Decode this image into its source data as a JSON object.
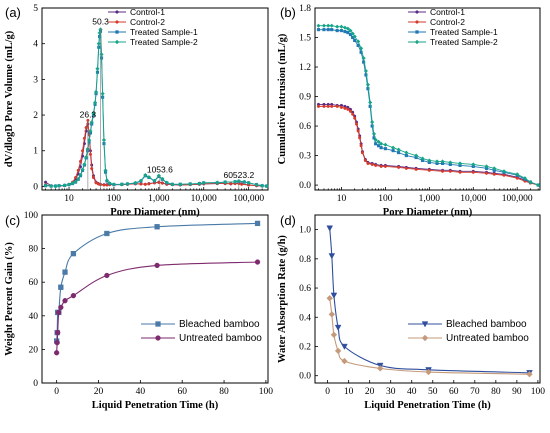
{
  "chart_data": [
    {
      "panel": "(a)",
      "type": "line",
      "xlabel": "Pore Diameter (nm)",
      "ylabel": "dV/dlogD Pore Volume (mL/g)",
      "xscale": "log",
      "xlim": [
        2.5,
        270000
      ],
      "ylim": [
        -0.1,
        5
      ],
      "xticks": [
        {
          "v": 10,
          "t": "10"
        },
        {
          "v": 100,
          "t": "100"
        },
        {
          "v": 1000,
          "t": "1,000"
        },
        {
          "v": 10000,
          "t": "10,000"
        },
        {
          "v": 100000,
          "t": "100,000"
        }
      ],
      "yticks": [
        0,
        1,
        2,
        3,
        4,
        5
      ],
      "legend_position": "top-center",
      "annotations": [
        {
          "text": "26.3",
          "x": 26.3,
          "y": 1.85
        },
        {
          "text": "50.3",
          "x": 50.3,
          "y": 4.45
        },
        {
          "text": "1053.6",
          "x": 1053.6,
          "y": 0.3
        },
        {
          "text": "60523.2",
          "x": 60523.2,
          "y": 0.15
        }
      ],
      "series": [
        {
          "name": "Control-1",
          "color": "#5b2a83",
          "marker": "dot",
          "x": [
            3,
            4,
            5,
            6,
            8,
            10,
            12,
            14,
            16,
            18,
            20,
            22,
            24,
            26.3,
            28,
            30,
            32,
            35,
            40,
            45,
            50,
            60,
            70,
            80,
            100,
            150,
            200,
            300,
            400,
            500,
            600,
            800,
            1000,
            1200,
            1500,
            2000,
            3000,
            5000,
            8000,
            10000,
            20000,
            30000,
            40000,
            50000,
            60523,
            70000,
            100000,
            150000,
            200000,
            250000
          ],
          "y": [
            0.12,
            0.02,
            0.01,
            0.01,
            0.02,
            0.05,
            0.1,
            0.2,
            0.35,
            0.55,
            0.85,
            1.2,
            1.55,
            1.75,
            1.5,
            1.0,
            0.6,
            0.3,
            0.12,
            0.08,
            0.06,
            0.05,
            0.05,
            0.05,
            0.05,
            0.05,
            0.06,
            0.08,
            0.07,
            0.06,
            0.08,
            0.1,
            0.12,
            0.1,
            0.06,
            0.05,
            0.04,
            0.05,
            0.06,
            0.07,
            0.08,
            0.08,
            0.07,
            0.08,
            0.09,
            0.07,
            0.04,
            0.02,
            0.01,
            0.01
          ]
        },
        {
          "name": "Control-2",
          "color": "#d63a2a",
          "marker": "dot",
          "x": [
            3,
            4,
            5,
            6,
            8,
            10,
            12,
            14,
            16,
            18,
            20,
            22,
            24,
            26.3,
            28,
            30,
            32,
            35,
            40,
            45,
            50,
            60,
            70,
            80,
            100,
            150,
            200,
            300,
            400,
            500,
            600,
            800,
            1000,
            1200,
            1500,
            2000,
            3000,
            5000,
            8000,
            10000,
            20000,
            30000,
            40000,
            50000,
            60523,
            70000,
            100000,
            150000,
            200000,
            250000
          ],
          "y": [
            0.05,
            0.01,
            0.01,
            0.02,
            0.03,
            0.06,
            0.12,
            0.25,
            0.45,
            0.7,
            1.0,
            1.35,
            1.65,
            1.85,
            1.45,
            0.9,
            0.5,
            0.25,
            0.1,
            0.07,
            0.05,
            0.04,
            0.04,
            0.05,
            0.05,
            0.05,
            0.06,
            0.07,
            0.07,
            0.06,
            0.07,
            0.1,
            0.11,
            0.09,
            0.06,
            0.05,
            0.04,
            0.05,
            0.06,
            0.07,
            0.08,
            0.08,
            0.08,
            0.08,
            0.08,
            0.06,
            0.04,
            0.02,
            0.01,
            0.01
          ]
        },
        {
          "name": "Treated Sample-1",
          "color": "#1f77b4",
          "marker": "square",
          "x": [
            3,
            4,
            5,
            6,
            8,
            10,
            12,
            14,
            16,
            18,
            20,
            22,
            24,
            26,
            28,
            30,
            32,
            35,
            38,
            40,
            43,
            46,
            48,
            50.3,
            53,
            56,
            60,
            65,
            70,
            80,
            100,
            150,
            200,
            300,
            400,
            500,
            600,
            800,
            1000,
            1200,
            1500,
            2000,
            3000,
            5000,
            8000,
            10000,
            20000,
            30000,
            50000,
            60523,
            80000,
            100000,
            150000,
            200000,
            250000
          ],
          "y": [
            0.02,
            0.01,
            0.01,
            0.02,
            0.03,
            0.05,
            0.08,
            0.12,
            0.2,
            0.3,
            0.45,
            0.6,
            0.8,
            1.0,
            1.25,
            1.5,
            1.75,
            2.0,
            2.3,
            2.6,
            3.2,
            3.9,
            4.2,
            4.35,
            3.6,
            2.5,
            1.2,
            0.4,
            0.15,
            0.08,
            0.05,
            0.06,
            0.07,
            0.09,
            0.15,
            0.3,
            0.25,
            0.15,
            0.28,
            0.2,
            0.1,
            0.06,
            0.06,
            0.07,
            0.08,
            0.1,
            0.1,
            0.12,
            0.13,
            0.14,
            0.12,
            0.1,
            0.05,
            0.02,
            0.01
          ]
        },
        {
          "name": "Treated Sample-2",
          "color": "#17a589",
          "marker": "diamond",
          "x": [
            3,
            4,
            5,
            6,
            8,
            10,
            12,
            14,
            16,
            18,
            20,
            22,
            24,
            26,
            28,
            30,
            32,
            35,
            38,
            40,
            43,
            46,
            48,
            50.3,
            53,
            56,
            60,
            65,
            70,
            80,
            100,
            150,
            200,
            300,
            400,
            500,
            600,
            800,
            1000,
            1200,
            1500,
            2000,
            3000,
            5000,
            8000,
            10000,
            20000,
            30000,
            50000,
            60523,
            80000,
            100000,
            150000,
            200000,
            250000
          ],
          "y": [
            0.03,
            0.01,
            0.01,
            0.02,
            0.03,
            0.05,
            0.09,
            0.13,
            0.21,
            0.32,
            0.47,
            0.62,
            0.82,
            1.05,
            1.3,
            1.55,
            1.8,
            2.05,
            2.35,
            2.65,
            3.3,
            4.0,
            4.3,
            4.4,
            3.7,
            2.6,
            1.3,
            0.45,
            0.17,
            0.09,
            0.06,
            0.06,
            0.07,
            0.1,
            0.16,
            0.32,
            0.26,
            0.16,
            0.3,
            0.21,
            0.11,
            0.06,
            0.06,
            0.07,
            0.08,
            0.1,
            0.11,
            0.12,
            0.13,
            0.15,
            0.13,
            0.1,
            0.05,
            0.02,
            0.01
          ]
        }
      ]
    },
    {
      "panel": "(b)",
      "type": "line",
      "xlabel": "Pore Diameter (nm)",
      "ylabel": "Cumulative Intrusion (mL/g)",
      "xscale": "log",
      "xlim": [
        2.5,
        330000
      ],
      "ylim": [
        -0.05,
        1.8
      ],
      "xticks": [
        {
          "v": 10,
          "t": "10"
        },
        {
          "v": 100,
          "t": "100"
        },
        {
          "v": 1000,
          "t": "1,000"
        },
        {
          "v": 10000,
          "t": "10,000"
        },
        {
          "v": 100000,
          "t": "100,000"
        }
      ],
      "yticks": [
        {
          "v": 0,
          "t": "0.0"
        },
        {
          "v": 0.3,
          "t": "0.3"
        },
        {
          "v": 0.6,
          "t": "0.6"
        },
        {
          "v": 0.9,
          "t": "0.9"
        },
        {
          "v": 1.2,
          "t": "1.2"
        },
        {
          "v": 1.5,
          "t": "1.5"
        },
        {
          "v": 1.8,
          "t": "1.8"
        }
      ],
      "legend_position": "top-right",
      "series": [
        {
          "name": "Control-1",
          "color": "#5b2a83",
          "marker": "dot",
          "x": [
            3,
            4,
            5,
            6,
            8,
            10,
            12,
            14,
            16,
            18,
            20,
            22,
            24,
            26,
            28,
            30,
            35,
            40,
            50,
            60,
            80,
            100,
            200,
            300,
            500,
            1000,
            2000,
            3000,
            5000,
            10000,
            20000,
            30000,
            50000,
            100000,
            150000,
            200000,
            300000
          ],
          "y": [
            0.82,
            0.82,
            0.82,
            0.82,
            0.81,
            0.81,
            0.8,
            0.79,
            0.77,
            0.74,
            0.7,
            0.64,
            0.57,
            0.5,
            0.42,
            0.34,
            0.26,
            0.23,
            0.22,
            0.21,
            0.2,
            0.2,
            0.19,
            0.18,
            0.17,
            0.16,
            0.15,
            0.15,
            0.14,
            0.14,
            0.13,
            0.12,
            0.11,
            0.08,
            0.05,
            0.03,
            0.0
          ]
        },
        {
          "name": "Control-2",
          "color": "#d63a2a",
          "marker": "dot",
          "x": [
            3,
            4,
            5,
            6,
            8,
            10,
            12,
            14,
            16,
            18,
            20,
            22,
            24,
            26,
            28,
            30,
            35,
            40,
            50,
            60,
            80,
            100,
            200,
            300,
            500,
            1000,
            2000,
            3000,
            5000,
            10000,
            20000,
            30000,
            50000,
            100000,
            150000,
            200000,
            300000
          ],
          "y": [
            0.8,
            0.8,
            0.8,
            0.8,
            0.8,
            0.79,
            0.78,
            0.77,
            0.75,
            0.72,
            0.68,
            0.62,
            0.55,
            0.48,
            0.4,
            0.33,
            0.25,
            0.22,
            0.21,
            0.2,
            0.19,
            0.19,
            0.18,
            0.17,
            0.16,
            0.15,
            0.14,
            0.14,
            0.13,
            0.13,
            0.12,
            0.11,
            0.1,
            0.07,
            0.04,
            0.02,
            0.0
          ]
        },
        {
          "name": "Treated Sample-1",
          "color": "#1f77b4",
          "marker": "square",
          "x": [
            3,
            4,
            5,
            6,
            8,
            10,
            12,
            14,
            16,
            18,
            20,
            24,
            28,
            32,
            36,
            40,
            45,
            50,
            55,
            60,
            70,
            80,
            100,
            150,
            200,
            300,
            500,
            700,
            1000,
            1500,
            2000,
            3000,
            5000,
            10000,
            20000,
            30000,
            50000,
            100000,
            150000,
            200000,
            300000
          ],
          "y": [
            1.58,
            1.58,
            1.58,
            1.58,
            1.57,
            1.57,
            1.56,
            1.55,
            1.53,
            1.5,
            1.47,
            1.42,
            1.35,
            1.25,
            1.12,
            0.98,
            0.8,
            0.6,
            0.48,
            0.42,
            0.4,
            0.38,
            0.37,
            0.35,
            0.33,
            0.3,
            0.28,
            0.25,
            0.23,
            0.22,
            0.22,
            0.21,
            0.2,
            0.19,
            0.17,
            0.15,
            0.13,
            0.1,
            0.06,
            0.03,
            0.0
          ]
        },
        {
          "name": "Treated Sample-2",
          "color": "#17a589",
          "marker": "diamond",
          "x": [
            3,
            4,
            5,
            6,
            8,
            10,
            12,
            14,
            16,
            18,
            20,
            24,
            28,
            32,
            36,
            40,
            45,
            50,
            55,
            60,
            70,
            80,
            100,
            150,
            200,
            300,
            500,
            700,
            1000,
            1500,
            2000,
            3000,
            5000,
            10000,
            20000,
            30000,
            50000,
            100000,
            150000,
            200000,
            300000
          ],
          "y": [
            1.62,
            1.62,
            1.62,
            1.62,
            1.61,
            1.61,
            1.6,
            1.59,
            1.57,
            1.54,
            1.51,
            1.46,
            1.39,
            1.29,
            1.16,
            1.02,
            0.84,
            0.64,
            0.52,
            0.46,
            0.44,
            0.42,
            0.41,
            0.38,
            0.36,
            0.33,
            0.3,
            0.27,
            0.25,
            0.24,
            0.24,
            0.23,
            0.22,
            0.21,
            0.19,
            0.17,
            0.14,
            0.11,
            0.07,
            0.03,
            0.0
          ]
        }
      ]
    },
    {
      "panel": "(c)",
      "type": "line",
      "xlabel": "Liquid Penetration Time (h)",
      "ylabel": "Weight Percent Gain (%)",
      "xlim": [
        -7,
        101
      ],
      "ylim": [
        0,
        100
      ],
      "xticks": [
        0,
        20,
        40,
        60,
        80,
        100
      ],
      "yticks": [
        0,
        20,
        40,
        60,
        80,
        100
      ],
      "legend_position": "bottom-right",
      "series": [
        {
          "name": "Bleached bamboo",
          "color": "#4a7aa7",
          "marker": "square",
          "x": [
            0,
            0.25,
            0.5,
            1,
            2,
            4,
            8,
            24,
            48,
            96
          ],
          "y": [
            25,
            30,
            42,
            42,
            57,
            66,
            77,
            89,
            93,
            95
          ]
        },
        {
          "name": "Untreated bamboo",
          "color": "#7e2a6e",
          "marker": "dot",
          "x": [
            0,
            0.25,
            0.5,
            1,
            2,
            4,
            8,
            24,
            48,
            96
          ],
          "y": [
            18,
            24,
            30,
            42,
            45,
            49,
            52,
            64,
            70,
            72
          ]
        }
      ]
    },
    {
      "panel": "(d)",
      "type": "line",
      "xlabel": "Liquid Penetration Time (h)",
      "ylabel": "Water Absorption Rate (g/h)",
      "xlim": [
        -6,
        101
      ],
      "ylim": [
        -0.05,
        1.1
      ],
      "xticks": [
        0,
        10,
        20,
        30,
        40,
        50,
        60,
        70,
        80,
        90,
        100
      ],
      "yticks": [
        {
          "v": 0,
          "t": "0.0"
        },
        {
          "v": 0.2,
          "t": "0.2"
        },
        {
          "v": 0.4,
          "t": "0.4"
        },
        {
          "v": 0.6,
          "t": "0.6"
        },
        {
          "v": 0.8,
          "t": "0.8"
        },
        {
          "v": 1.0,
          "t": "1.0"
        }
      ],
      "legend_position": "right-center",
      "series": [
        {
          "name": "Bleached bamboo",
          "color": "#2f4f9e",
          "marker": "triangle-down",
          "x": [
            1,
            2,
            3,
            5,
            8,
            25,
            48,
            96
          ],
          "y": [
            1.01,
            0.82,
            0.55,
            0.33,
            0.2,
            0.07,
            0.04,
            0.02
          ]
        },
        {
          "name": "Untreated bamboo",
          "color": "#c49a7a",
          "marker": "diamond",
          "x": [
            1,
            2,
            3,
            5,
            8,
            25,
            48,
            96
          ],
          "y": [
            0.53,
            0.42,
            0.28,
            0.17,
            0.1,
            0.05,
            0.025,
            0.01
          ]
        }
      ]
    }
  ]
}
